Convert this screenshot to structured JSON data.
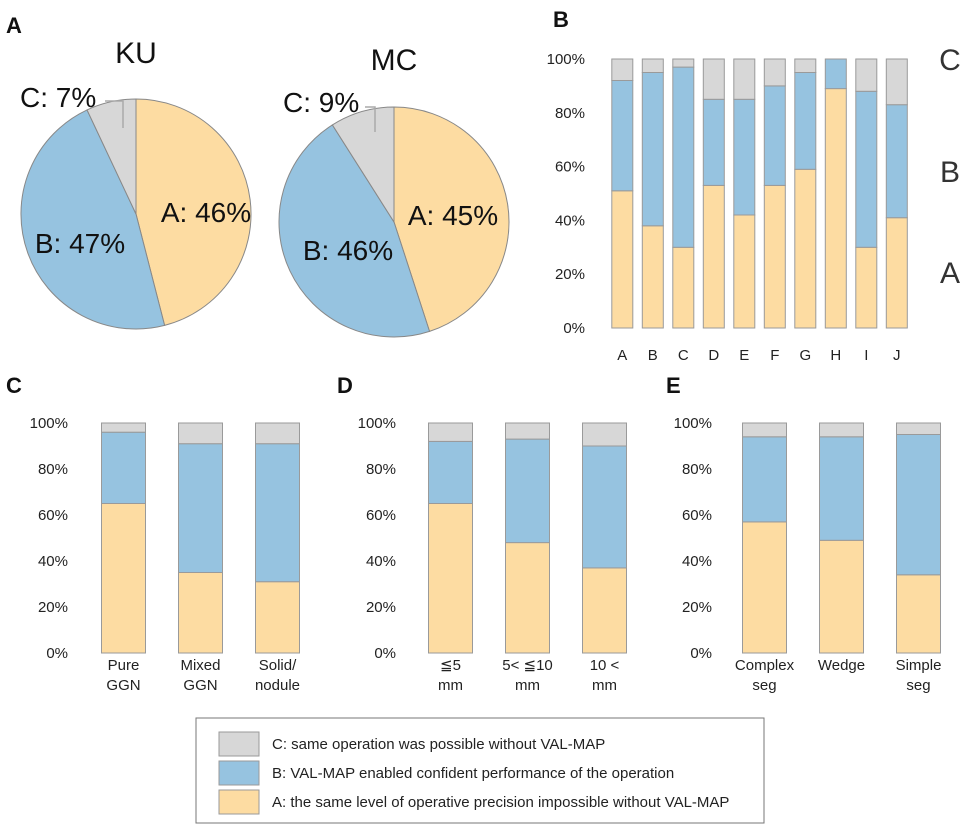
{
  "panel_letters": [
    "A",
    "B",
    "C",
    "D",
    "E"
  ],
  "colors": {
    "A": "#fddca2",
    "B": "#96c3e0",
    "C": "#d7d7d7",
    "stroke": "#9a9a9a"
  },
  "legend": [
    {
      "key": "C",
      "text": "C: same operation was possible without VAL-MAP"
    },
    {
      "key": "B",
      "text": "B: VAL-MAP enabled confident performance of the operation"
    },
    {
      "key": "A",
      "text": "A: the same level of operative precision impossible without VAL-MAP"
    }
  ],
  "chart_data": [
    {
      "panel": "A",
      "type": "pie",
      "title": "KU",
      "slices": [
        {
          "name": "A",
          "label": "A: 46%",
          "value": 46
        },
        {
          "name": "B",
          "label": "B: 47%",
          "value": 47
        },
        {
          "name": "C",
          "label": "C: 7%",
          "value": 7
        }
      ]
    },
    {
      "panel": "A",
      "type": "pie",
      "title": "MC",
      "slices": [
        {
          "name": "A",
          "label": "A: 45%",
          "value": 45
        },
        {
          "name": "B",
          "label": "B: 46%",
          "value": 46
        },
        {
          "name": "C",
          "label": "C: 9%",
          "value": 9
        }
      ]
    },
    {
      "panel": "B",
      "type": "bar",
      "stacked": true,
      "categories": [
        [
          "A"
        ],
        [
          "B"
        ],
        [
          "C"
        ],
        [
          "D"
        ],
        [
          "E"
        ],
        [
          "F"
        ],
        [
          "G"
        ],
        [
          "H"
        ],
        [
          "I"
        ],
        [
          "J"
        ]
      ],
      "yticks": [
        "0%",
        "20%",
        "40%",
        "60%",
        "80%",
        "100%"
      ],
      "ylim": [
        0,
        100
      ],
      "side_labels": [
        "A",
        "B",
        "C"
      ],
      "series": [
        {
          "name": "A",
          "values": [
            51,
            38,
            30,
            53,
            42,
            53,
            59,
            89,
            30,
            41
          ]
        },
        {
          "name": "B",
          "values": [
            41,
            57,
            67,
            32,
            43,
            37,
            36,
            11,
            58,
            42
          ]
        },
        {
          "name": "C",
          "values": [
            8,
            5,
            3,
            15,
            15,
            10,
            5,
            0,
            12,
            17
          ]
        }
      ]
    },
    {
      "panel": "C",
      "type": "bar",
      "stacked": true,
      "categories": [
        [
          "Pure",
          "GGN"
        ],
        [
          "Mixed",
          "GGN"
        ],
        [
          "Solid/",
          "nodule"
        ]
      ],
      "yticks": [
        "0%",
        "20%",
        "40%",
        "60%",
        "80%",
        "100%"
      ],
      "ylim": [
        0,
        100
      ],
      "series": [
        {
          "name": "A",
          "values": [
            65,
            35,
            31
          ]
        },
        {
          "name": "B",
          "values": [
            31,
            56,
            60
          ]
        },
        {
          "name": "C",
          "values": [
            4,
            9,
            9
          ]
        }
      ]
    },
    {
      "panel": "D",
      "type": "bar",
      "stacked": true,
      "categories": [
        [
          "≦5",
          "mm"
        ],
        [
          "5< ≦10",
          "mm"
        ],
        [
          "10 <",
          "mm"
        ]
      ],
      "yticks": [
        "0%",
        "20%",
        "40%",
        "60%",
        "80%",
        "100%"
      ],
      "ylim": [
        0,
        100
      ],
      "series": [
        {
          "name": "A",
          "values": [
            65,
            48,
            37
          ]
        },
        {
          "name": "B",
          "values": [
            27,
            45,
            53
          ]
        },
        {
          "name": "C",
          "values": [
            8,
            7,
            10
          ]
        }
      ]
    },
    {
      "panel": "E",
      "type": "bar",
      "stacked": true,
      "categories": [
        [
          "Complex",
          "seg"
        ],
        [
          "Wedge"
        ],
        [
          "Simple",
          "seg"
        ]
      ],
      "yticks": [
        "0%",
        "20%",
        "40%",
        "60%",
        "80%",
        "100%"
      ],
      "ylim": [
        0,
        100
      ],
      "series": [
        {
          "name": "A",
          "values": [
            57,
            49,
            34
          ]
        },
        {
          "name": "B",
          "values": [
            37,
            45,
            61
          ]
        },
        {
          "name": "C",
          "values": [
            6,
            6,
            5
          ]
        }
      ]
    }
  ]
}
